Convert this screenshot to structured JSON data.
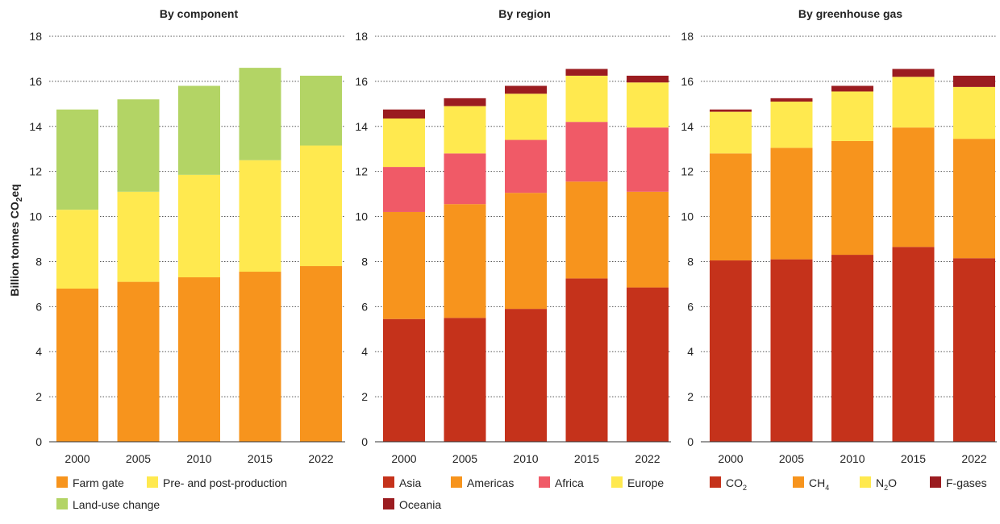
{
  "chart_data": [
    {
      "type": "bar",
      "title": "By component",
      "ylabel": "Billion tonnes CO2eq",
      "ylim": [
        0,
        18
      ],
      "yticks": [
        0,
        2,
        4,
        6,
        8,
        10,
        12,
        14,
        16,
        18
      ],
      "stacked": true,
      "grid": true,
      "legend_position": "bottom",
      "categories": [
        "2000",
        "2005",
        "2010",
        "2015",
        "2022"
      ],
      "series": [
        {
          "name": "Farm gate",
          "color": "#f7941d",
          "values": [
            6.8,
            7.1,
            7.3,
            7.55,
            7.8
          ]
        },
        {
          "name": "Pre- and post-production",
          "color": "#ffe94f",
          "values": [
            3.5,
            4.0,
            4.55,
            4.95,
            5.35
          ]
        },
        {
          "name": "Land-use change",
          "color": "#b3d465",
          "values": [
            4.45,
            4.1,
            3.95,
            4.1,
            3.1
          ]
        }
      ]
    },
    {
      "type": "bar",
      "title": "By region",
      "ylim": [
        0,
        18
      ],
      "yticks": [
        0,
        2,
        4,
        6,
        8,
        10,
        12,
        14,
        16,
        18
      ],
      "stacked": true,
      "grid": true,
      "legend_position": "bottom",
      "categories": [
        "2000",
        "2005",
        "2010",
        "2015",
        "2022"
      ],
      "series": [
        {
          "name": "Asia",
          "color": "#c5321b",
          "values": [
            5.45,
            5.5,
            5.9,
            7.25,
            6.85
          ]
        },
        {
          "name": "Americas",
          "color": "#f7941d",
          "values": [
            4.75,
            5.05,
            5.15,
            4.3,
            4.25
          ]
        },
        {
          "name": "Africa",
          "color": "#f05a67",
          "values": [
            2.0,
            2.25,
            2.35,
            2.65,
            2.85
          ]
        },
        {
          "name": "Europe",
          "color": "#ffe94f",
          "values": [
            2.15,
            2.1,
            2.05,
            2.05,
            2.0
          ]
        },
        {
          "name": "Oceania",
          "color": "#9b1c20",
          "values": [
            0.4,
            0.35,
            0.35,
            0.3,
            0.3
          ]
        }
      ]
    },
    {
      "type": "bar",
      "title": "By greenhouse gas",
      "ylim": [
        0,
        18
      ],
      "yticks": [
        0,
        2,
        4,
        6,
        8,
        10,
        12,
        14,
        16,
        18
      ],
      "stacked": true,
      "grid": true,
      "legend_position": "bottom",
      "categories": [
        "2000",
        "2005",
        "2010",
        "2015",
        "2022"
      ],
      "series": [
        {
          "name": "CO",
          "sub": "2",
          "color": "#c5321b",
          "values": [
            8.05,
            8.1,
            8.3,
            8.65,
            8.15
          ]
        },
        {
          "name": "CH",
          "sub": "4",
          "color": "#f7941d",
          "values": [
            4.75,
            4.95,
            5.05,
            5.3,
            5.3
          ]
        },
        {
          "name": "N",
          "sub": "2",
          "name_after": "O",
          "color": "#ffe94f",
          "values": [
            1.85,
            2.05,
            2.2,
            2.25,
            2.3
          ]
        },
        {
          "name": "F-gases",
          "color": "#9b1c20",
          "values": [
            0.1,
            0.15,
            0.25,
            0.35,
            0.5
          ]
        }
      ]
    }
  ],
  "ylabel_parts": {
    "pre": "Billion tonnes CO",
    "sub": "2",
    "post": "eq"
  }
}
